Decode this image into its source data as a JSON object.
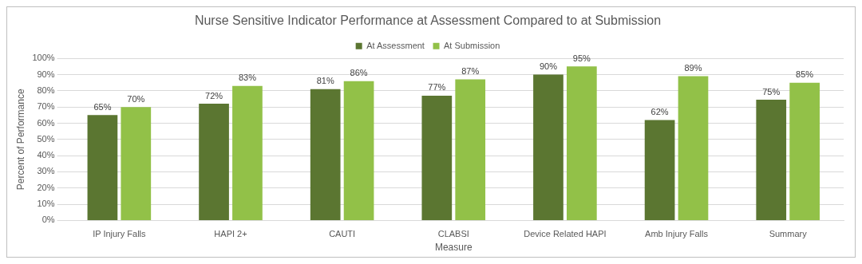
{
  "chart_data": {
    "type": "bar",
    "title": "Nurse Sensitive Indicator Performance at Assessment Compared to at Submission",
    "xlabel": "Measure",
    "ylabel": "Percent of Performance",
    "categories": [
      "IP Injury Falls",
      "HAPI 2+",
      "CAUTI",
      "CLABSI",
      "Device Related HAPI",
      "Amb Injury Falls",
      "Summary"
    ],
    "series": [
      {
        "name": "At Assessment",
        "color": "#5b7631",
        "values": [
          65,
          72,
          81,
          77,
          90,
          62,
          74.5
        ],
        "value_labels": [
          "65%",
          "72%",
          "81%",
          "77%",
          "90%",
          "62%",
          "75%"
        ]
      },
      {
        "name": "At Submission",
        "color": "#92c148",
        "values": [
          70,
          83,
          86,
          87,
          95,
          89,
          85
        ],
        "value_labels": [
          "70%",
          "83%",
          "86%",
          "87%",
          "95%",
          "89%",
          "85%"
        ]
      }
    ],
    "ylim": [
      0,
      100
    ],
    "yticks": [
      {
        "value": 0,
        "label": "0%"
      },
      {
        "value": 10,
        "label": "10%"
      },
      {
        "value": 20,
        "label": "20%"
      },
      {
        "value": 30,
        "label": "30%"
      },
      {
        "value": 40,
        "label": "40%"
      },
      {
        "value": 50,
        "label": "50%"
      },
      {
        "value": 60,
        "label": "60%"
      },
      {
        "value": 70,
        "label": "70%"
      },
      {
        "value": 80,
        "label": "80%"
      },
      {
        "value": 90,
        "label": "90%"
      },
      {
        "value": 100,
        "label": "100%"
      }
    ],
    "grid": "y",
    "legend": "top"
  }
}
